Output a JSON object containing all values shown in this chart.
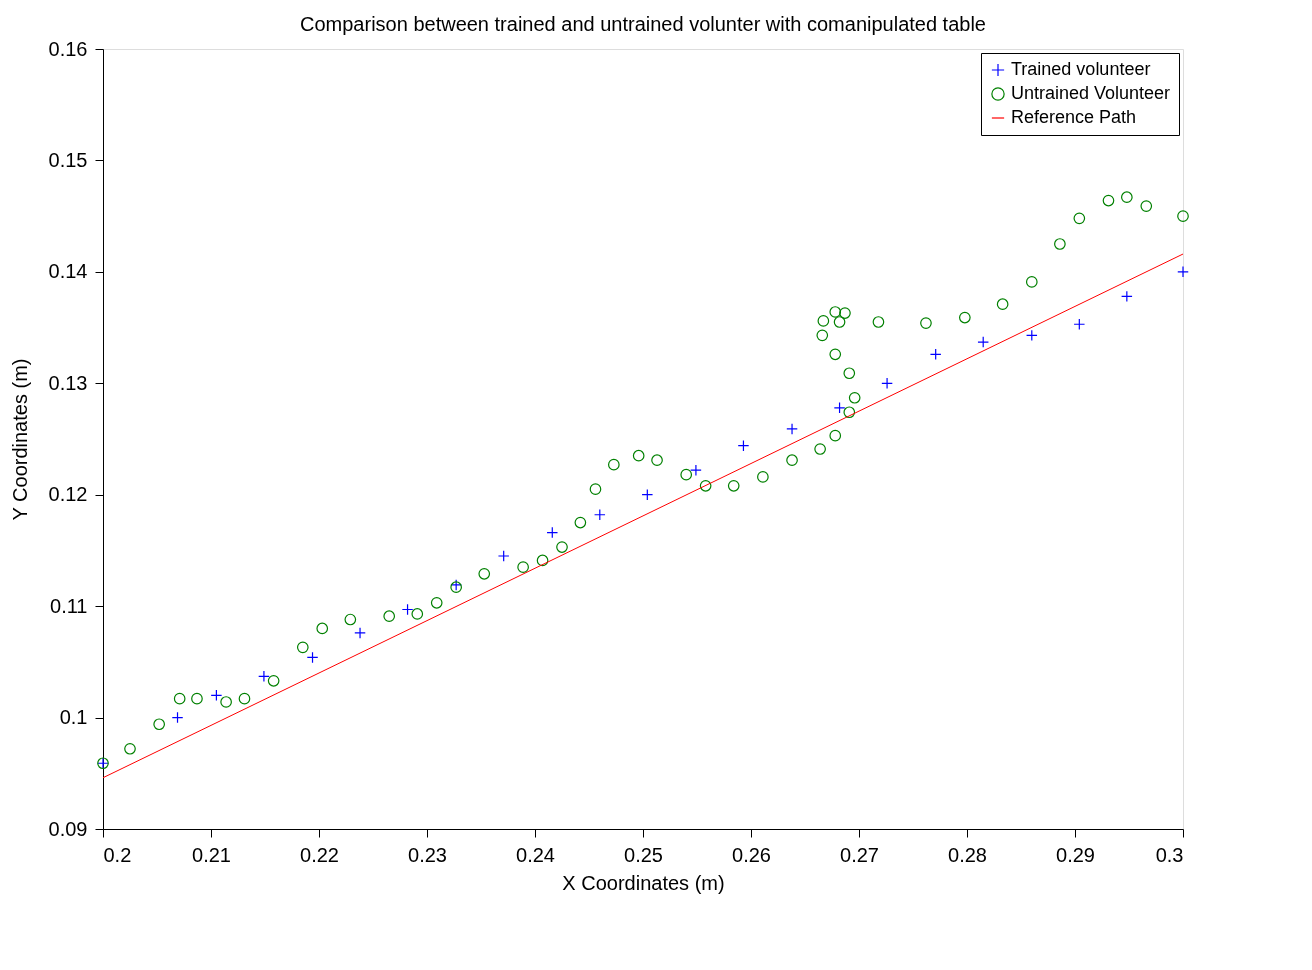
{
  "chart_data": {
    "type": "scatter",
    "title": "Comparison between trained and untrained volunter with comanipulated table",
    "xlabel": "X Coordinates (m)",
    "ylabel": "Y Coordinates (m)",
    "xlim": [
      0.2,
      0.3
    ],
    "xticks": [
      0.2,
      0.21,
      0.22,
      0.23,
      0.24,
      0.25,
      0.26,
      0.27,
      0.28,
      0.29,
      0.3
    ],
    "ylim": [
      0.09,
      0.16
    ],
    "yticks": [
      0.09,
      0.1,
      0.11,
      0.12,
      0.13,
      0.14,
      0.15,
      0.16
    ],
    "grid": false,
    "legend": "top right",
    "series": [
      {
        "name": "Trained volunteer",
        "color": "#0000ff",
        "marker": "cross",
        "x": [
          0.2,
          0.2069,
          0.2105,
          0.2149,
          0.2194,
          0.2238,
          0.2282,
          0.2327,
          0.2371,
          0.2416,
          0.246,
          0.2504,
          0.2549,
          0.2593,
          0.2638,
          0.2682,
          0.2726,
          0.2771,
          0.2815,
          0.286,
          0.2904,
          0.2948,
          0.3
        ],
        "values": [
          0.0959,
          0.1,
          0.102,
          0.1037,
          0.1054,
          0.1076,
          0.1097,
          0.1119,
          0.1145,
          0.1166,
          0.1182,
          0.12,
          0.1222,
          0.1244,
          0.1259,
          0.1278,
          0.13,
          0.1326,
          0.1337,
          0.1343,
          0.1353,
          0.1378,
          0.14
        ]
      },
      {
        "name": "Untrained Volunteer",
        "color": "#008000",
        "marker": "circle",
        "x": [
          0.2,
          0.2025,
          0.2052,
          0.2071,
          0.2087,
          0.2114,
          0.2131,
          0.2158,
          0.2185,
          0.2203,
          0.2229,
          0.2265,
          0.2291,
          0.2309,
          0.2327,
          0.2353,
          0.2389,
          0.2407,
          0.2425,
          0.2442,
          0.2456,
          0.2473,
          0.2496,
          0.2513,
          0.254,
          0.2558,
          0.2584,
          0.2611,
          0.2638,
          0.2664,
          0.2678,
          0.2691,
          0.2696,
          0.2691,
          0.2678,
          0.2666,
          0.2667,
          0.2678,
          0.2687,
          0.2682,
          0.2718,
          0.2762,
          0.2798,
          0.2833,
          0.286,
          0.2886,
          0.2904,
          0.2931,
          0.2948,
          0.2966,
          0.3
        ],
        "values": [
          0.0959,
          0.0972,
          0.0994,
          0.1017,
          0.1017,
          0.1014,
          0.1017,
          0.1033,
          0.1063,
          0.108,
          0.1088,
          0.1091,
          0.1093,
          0.1103,
          0.1117,
          0.1129,
          0.1135,
          0.1141,
          0.1153,
          0.1175,
          0.1205,
          0.1227,
          0.1235,
          0.1231,
          0.1218,
          0.1208,
          0.1208,
          0.1216,
          0.1231,
          0.1241,
          0.1253,
          0.1274,
          0.1287,
          0.1309,
          0.1326,
          0.1343,
          0.1356,
          0.1364,
          0.1363,
          0.1355,
          0.1355,
          0.1354,
          0.1359,
          0.1371,
          0.1391,
          0.1425,
          0.1448,
          0.1464,
          0.1467,
          0.1459,
          0.145
        ]
      },
      {
        "name": "Reference Path",
        "color": "#ff0000",
        "type": "line",
        "marker": "none",
        "line_style": "solid",
        "x": [
          0.2,
          0.3
        ],
        "values": [
          0.0946,
          0.1416
        ]
      }
    ]
  }
}
